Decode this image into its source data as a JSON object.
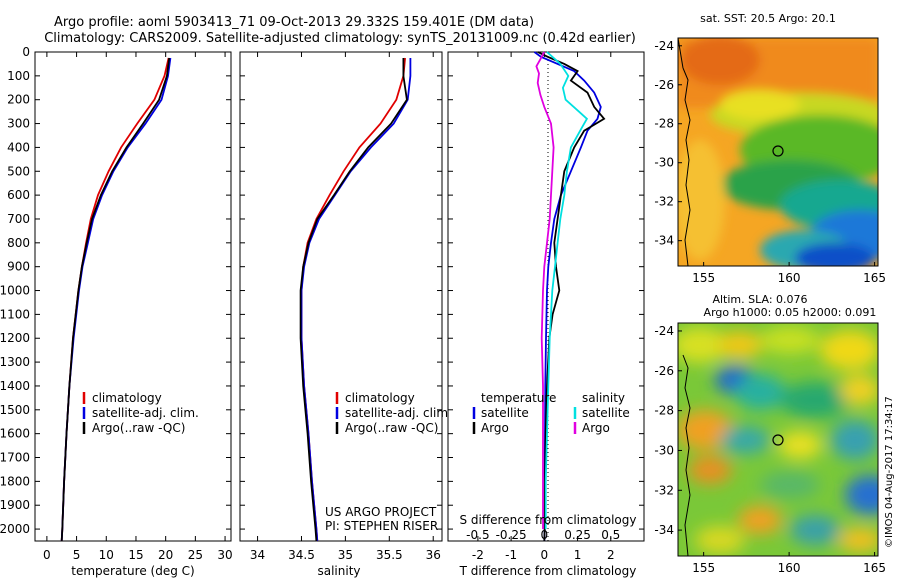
{
  "title": {
    "line1": "Argo profile: aoml 5903413_71 09-Oct-2013 29.332S 159.401E (DM data)",
    "line2": "Climatology: CARS2009. Satellite-adjusted climatology: synTS_20131009.nc (0.42d earlier)"
  },
  "colors": {
    "climatology": "#e00000",
    "satellite": "#0000e0",
    "argo": "#000000",
    "cyan": "#00e0e0",
    "magenta": "#e000e0"
  },
  "depth_ticks": [
    "0",
    "100",
    "200",
    "300",
    "400",
    "500",
    "600",
    "700",
    "800",
    "900",
    "1000",
    "1100",
    "1200",
    "1300",
    "1400",
    "1500",
    "1600",
    "1700",
    "1800",
    "1900",
    "2000"
  ],
  "legend": {
    "climatology": "climatology",
    "satellite": "satellite-adj. clim.",
    "argo": "Argo(..raw -QC)"
  },
  "diff_legend": {
    "temperature": "temperature",
    "salinity": "salinity",
    "t_sat": "satellite",
    "t_argo": "Argo",
    "s_sat": "satellite",
    "s_argo": "Argo"
  },
  "project": {
    "line1": "US ARGO PROJECT",
    "line2": "PI: STEPHEN RISER"
  },
  "diff_xlabel_top": "S difference from climatology",
  "map1": {
    "title": "sat. SST: 20.5  Argo: 20.1",
    "ylabels": [
      "-24",
      "-26",
      "-28",
      "-30",
      "-32",
      "-34"
    ],
    "xlabels": [
      "155",
      "160",
      "165"
    ]
  },
  "map2": {
    "title1": "Altim. SLA: 0.076",
    "title2": "Argo h1000: 0.05 h2000: 0.091",
    "ylabels": [
      "-24",
      "-26",
      "-28",
      "-30",
      "-32",
      "-34"
    ],
    "xlabels": [
      "155",
      "160",
      "165"
    ]
  },
  "watermark": "©IMOS 04-Aug-2017 17:34:17",
  "chart_data": [
    {
      "type": "line",
      "xlabel": "temperature (deg C)",
      "xticks": [
        "0",
        "5",
        "10",
        "15",
        "20",
        "25",
        "30"
      ],
      "xlim": [
        -2,
        31
      ],
      "ylim": [
        0,
        2050
      ],
      "series": [
        {
          "name": "climatology",
          "color": "#e00000",
          "depth": [
            25,
            100,
            200,
            300,
            400,
            500,
            600,
            700,
            800,
            900,
            1000,
            1200,
            1400,
            1600,
            1800,
            2000,
            2050
          ],
          "values": [
            20.5,
            19.8,
            18.1,
            15.2,
            12.5,
            10.4,
            8.6,
            7.4,
            6.6,
            5.9,
            5.3,
            4.4,
            3.8,
            3.3,
            2.9,
            2.6,
            2.5
          ]
        },
        {
          "name": "satellite-adj. clim.",
          "color": "#0000e0",
          "depth": [
            25,
            100,
            200,
            300,
            400,
            500,
            600,
            700,
            800,
            900,
            1000,
            1200,
            1400,
            1600,
            1800,
            2000,
            2050
          ],
          "values": [
            20.8,
            20.4,
            19.3,
            16.6,
            13.6,
            11.2,
            9.3,
            7.8,
            6.9,
            6.0,
            5.4,
            4.5,
            3.8,
            3.3,
            2.9,
            2.6,
            2.5
          ]
        },
        {
          "name": "Argo(..raw -QC)",
          "color": "#000000",
          "depth": [
            25,
            100,
            200,
            300,
            400,
            500,
            600,
            700,
            800,
            900,
            1000,
            1200,
            1400,
            1600,
            1800,
            2000,
            2050
          ],
          "values": [
            20.6,
            20.2,
            18.9,
            16.2,
            13.4,
            11.0,
            9.1,
            7.6,
            6.7,
            5.9,
            5.3,
            4.4,
            3.8,
            3.3,
            2.9,
            2.6,
            2.5
          ]
        }
      ]
    },
    {
      "type": "line",
      "xlabel": "salinity",
      "xticks": [
        "34",
        "34.5",
        "35",
        "35.5",
        "36"
      ],
      "xlim": [
        33.8,
        36.1
      ],
      "ylim": [
        0,
        2050
      ],
      "series": [
        {
          "name": "climatology",
          "color": "#e00000",
          "depth": [
            25,
            100,
            200,
            300,
            400,
            500,
            600,
            700,
            800,
            900,
            1000,
            1200,
            1400,
            1600,
            1800,
            2000,
            2050
          ],
          "values": [
            35.68,
            35.66,
            35.58,
            35.4,
            35.16,
            34.98,
            34.82,
            34.67,
            34.57,
            34.52,
            34.5,
            34.5,
            34.53,
            34.58,
            34.62,
            34.67,
            34.68
          ]
        },
        {
          "name": "satellite-adj. clim.",
          "color": "#0000e0",
          "depth": [
            25,
            100,
            200,
            300,
            400,
            500,
            600,
            700,
            800,
            900,
            1000,
            1200,
            1400,
            1600,
            1800,
            2000,
            2050
          ],
          "values": [
            35.74,
            35.74,
            35.71,
            35.55,
            35.29,
            35.06,
            34.88,
            34.7,
            34.59,
            34.53,
            34.5,
            34.5,
            34.53,
            34.58,
            34.62,
            34.67,
            34.68
          ]
        },
        {
          "name": "Argo(..raw -QC)",
          "color": "#000000",
          "depth": [
            25,
            100,
            200,
            300,
            400,
            500,
            600,
            700,
            800,
            900,
            1000,
            1200,
            1400,
            1600,
            1800,
            2000,
            2050
          ],
          "values": [
            35.66,
            35.66,
            35.7,
            35.52,
            35.26,
            35.05,
            34.87,
            34.68,
            34.58,
            34.52,
            34.49,
            34.49,
            34.52,
            34.57,
            34.61,
            34.66,
            34.67
          ]
        }
      ]
    },
    {
      "type": "line",
      "xlabel": "T difference from climatology",
      "xticks": [
        "-2",
        "-1",
        "0",
        "1",
        "2"
      ],
      "xticks_top": [
        "-0.5",
        "-0.25",
        "0",
        "0.25",
        "0.5"
      ],
      "xlim": [
        -2.9,
        3.0
      ],
      "ylim": [
        0,
        2050
      ],
      "series": [
        {
          "name": "T satellite",
          "color": "#0000e0",
          "depth": [
            0,
            20,
            50,
            80,
            120,
            170,
            230,
            280,
            330,
            400,
            500,
            600,
            700,
            800,
            900,
            1000,
            1200,
            1400,
            1600,
            1800,
            2000,
            2050
          ],
          "values": [
            -0.3,
            -0.1,
            0.4,
            0.9,
            1.2,
            1.5,
            1.7,
            1.6,
            1.3,
            1.1,
            0.8,
            0.5,
            0.3,
            0.2,
            0.12,
            0.08,
            0.05,
            0.03,
            0.02,
            0.01,
            0.01,
            0
          ]
        },
        {
          "name": "T Argo",
          "color": "#000000",
          "depth": [
            0,
            20,
            50,
            80,
            120,
            170,
            230,
            280,
            330,
            400,
            500,
            600,
            700,
            800,
            900,
            1000,
            1100,
            1200,
            1400,
            1600,
            1800,
            2000,
            2050
          ],
          "values": [
            -0.2,
            0.1,
            0.6,
            1.0,
            0.8,
            1.3,
            1.5,
            1.8,
            1.2,
            0.9,
            0.6,
            0.5,
            0.4,
            0.3,
            0.35,
            0.45,
            0.25,
            0.15,
            0.08,
            0.04,
            0.02,
            0.01,
            0
          ]
        },
        {
          "name": "S satellite",
          "color": "#00e0e0",
          "depth": [
            0,
            50,
            100,
            150,
            200,
            250,
            280,
            320,
            400,
            500,
            600,
            700,
            800,
            900,
            1000,
            1200,
            1400,
            1600,
            1800,
            2000
          ],
          "values": [
            0.02,
            0.12,
            0.18,
            0.14,
            0.16,
            0.26,
            0.32,
            0.28,
            0.2,
            0.17,
            0.15,
            0.12,
            0.1,
            0.08,
            0.06,
            0.04,
            0.03,
            0.02,
            0.01,
            0.01
          ]
        },
        {
          "name": "S Argo",
          "color": "#e000e0",
          "depth": [
            0,
            30,
            60,
            90,
            130,
            180,
            230,
            300,
            400,
            500,
            600,
            700,
            800,
            900,
            1000,
            1200,
            1400,
            1600,
            1800,
            2000
          ],
          "values": [
            0.0,
            -0.03,
            -0.06,
            -0.04,
            -0.05,
            -0.03,
            0.0,
            0.05,
            0.07,
            0.06,
            0.05,
            0.04,
            0.02,
            0.0,
            -0.01,
            -0.02,
            -0.01,
            -0.01,
            -0.01,
            -0.01
          ]
        }
      ]
    },
    {
      "type": "heatmap",
      "title": "sat. SST: 20.5  Argo: 20.1",
      "xlim": [
        153.5,
        165.2
      ],
      "ylim": [
        -35.3,
        -23.6
      ],
      "xticks": [
        "155",
        "160",
        "165"
      ],
      "yticks": [
        "-24",
        "-26",
        "-28",
        "-30",
        "-32",
        "-34"
      ],
      "argo_position": [
        159.4,
        -29.3
      ]
    },
    {
      "type": "heatmap",
      "title": "Altim. SLA: 0.076  Argo h1000: 0.05 h2000: 0.091",
      "xlim": [
        153.5,
        165.2
      ],
      "ylim": [
        -35.3,
        -23.6
      ],
      "xticks": [
        "155",
        "160",
        "165"
      ],
      "yticks": [
        "-24",
        "-26",
        "-28",
        "-30",
        "-32",
        "-34"
      ],
      "argo_position": [
        159.4,
        -29.3
      ]
    }
  ]
}
